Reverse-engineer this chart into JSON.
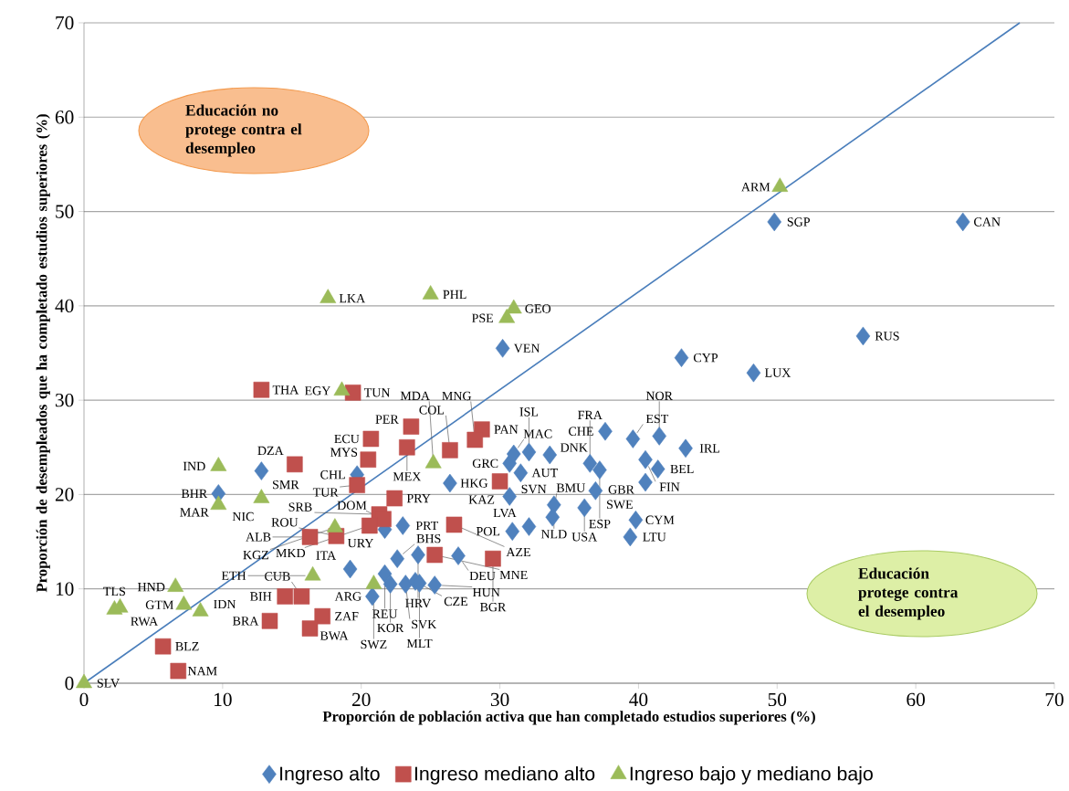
{
  "chart_data": {
    "type": "scatter",
    "xlabel": "Proporción de población activa que han completado estudios superiores (%)",
    "ylabel": "Proporción de desempleados que ha completado estudios superiores (%)",
    "xlim": [
      0,
      70
    ],
    "ylim": [
      0,
      70
    ],
    "xticks": [
      0,
      10,
      20,
      30,
      40,
      50,
      60,
      70
    ],
    "yticks": [
      0,
      10,
      20,
      30,
      40,
      50,
      60,
      70
    ],
    "grid": "y",
    "legend": "bottom",
    "series": [
      {
        "name": "Ingreso alto",
        "color": "#4f81bd",
        "marker": "diamond",
        "x": [
          49.8,
          63.4,
          56.2,
          43.1,
          48.3,
          30.2,
          12.8,
          9.7,
          19.7,
          26.4,
          31.5,
          30.7,
          31.0,
          32.1,
          33.6,
          37.6,
          39.6,
          41.5,
          43.4,
          40.5,
          41.4,
          40.5,
          36.5,
          37.2,
          36.9,
          30.7,
          33.9,
          36.1,
          33.8,
          39.8,
          39.4,
          30.9,
          32.1,
          21.7,
          23.0,
          22.6,
          24.1,
          27.0,
          19.2,
          21.7,
          22.1,
          23.2,
          23.9,
          24.2,
          25.3,
          20.8
        ],
        "values": [
          48.9,
          48.9,
          36.8,
          34.5,
          32.9,
          35.5,
          22.5,
          20.1,
          22.1,
          21.2,
          22.3,
          23.3,
          24.3,
          24.5,
          24.2,
          26.7,
          25.9,
          26.2,
          24.9,
          23.7,
          22.7,
          21.3,
          23.3,
          22.6,
          20.4,
          19.8,
          18.9,
          18.6,
          17.6,
          17.3,
          15.5,
          16.1,
          16.6,
          16.3,
          16.7,
          13.2,
          13.6,
          13.5,
          12.1,
          11.6,
          10.5,
          10.5,
          10.8,
          10.6,
          10.4,
          9.2
        ]
      },
      {
        "name": "Ingreso mediano alto",
        "color": "#c0504d",
        "marker": "square",
        "x": [
          12.8,
          19.4,
          23.6,
          20.7,
          20.5,
          23.3,
          26.4,
          28.7,
          28.2,
          15.2,
          19.7,
          30.0,
          22.4,
          21.3,
          21.6,
          20.6,
          18.2,
          16.3,
          26.7,
          25.3,
          29.5,
          14.5,
          15.7,
          13.4,
          17.2,
          16.3,
          5.7,
          6.8
        ],
        "values": [
          31.1,
          30.8,
          27.2,
          25.9,
          23.7,
          25.0,
          24.7,
          26.9,
          25.8,
          23.2,
          21.0,
          21.4,
          19.6,
          17.9,
          17.4,
          16.7,
          15.6,
          15.5,
          16.8,
          13.6,
          13.2,
          9.2,
          9.2,
          6.6,
          7.1,
          5.8,
          3.9,
          1.3
        ]
      },
      {
        "name": "Ingreso bajo y mediano bajo",
        "color": "#9bbb59",
        "marker": "triangle",
        "x": [
          9.7,
          9.7,
          12.8,
          18.1,
          25.2,
          18.6,
          17.6,
          25.0,
          31.0,
          30.5,
          50.2,
          16.5,
          20.9,
          6.6,
          7.2,
          8.4,
          2.6,
          2.2,
          0
        ],
        "values": [
          23.0,
          18.9,
          19.6,
          16.5,
          23.3,
          31.0,
          40.8,
          41.2,
          39.7,
          38.7,
          52.6,
          11.4,
          10.5,
          10.2,
          8.3,
          7.6,
          8.0,
          7.8,
          0
        ]
      },
      {
        "type": "line",
        "color": "#4a7ebb",
        "x": [
          0,
          67.5
        ],
        "values": [
          0,
          70
        ]
      }
    ],
    "annotations": [
      "Educación no protege contra el desempleo",
      "Educación protege contra el desempleo",
      {
        "text": "SGP",
        "x": 49.8,
        "y": 48.9
      },
      {
        "text": "CAN",
        "x": 63.4,
        "y": 48.9
      },
      {
        "text": "RUS",
        "x": 56.2,
        "y": 36.8
      },
      {
        "text": "CYP",
        "x": 43.1,
        "y": 34.5
      },
      {
        "text": "LUX",
        "x": 48.3,
        "y": 32.9
      },
      {
        "text": "VEN",
        "x": 30.2,
        "y": 35.5
      },
      {
        "text": "SMR",
        "x": 12.8,
        "y": 22.5
      },
      {
        "text": "BHR",
        "x": 9.7,
        "y": 20.1
      },
      {
        "text": "CHL",
        "x": 19.7,
        "y": 22.1
      },
      {
        "text": "HKG",
        "x": 26.4,
        "y": 21.2
      },
      {
        "text": "AUT",
        "x": 31.5,
        "y": 22.3
      },
      {
        "text": "GRC",
        "x": 30.7,
        "y": 23.3
      },
      {
        "text": "MAC",
        "x": 31.0,
        "y": 24.3
      },
      {
        "text": "ISL",
        "x": 32.1,
        "y": 24.5
      },
      {
        "text": "DNK",
        "x": 33.6,
        "y": 24.2
      },
      {
        "text": "CHE",
        "x": 37.6,
        "y": 26.7
      },
      {
        "text": "EST",
        "x": 39.6,
        "y": 25.9
      },
      {
        "text": "NOR",
        "x": 41.5,
        "y": 26.2
      },
      {
        "text": "IRL",
        "x": 43.4,
        "y": 24.9
      },
      {
        "text": "FIN",
        "x": 40.5,
        "y": 23.7
      },
      {
        "text": "BEL",
        "x": 41.4,
        "y": 22.7
      },
      {
        "text": "GBR",
        "x": 40.5,
        "y": 21.3
      },
      {
        "text": "FRA",
        "x": 36.5,
        "y": 23.3
      },
      {
        "text": "ESP",
        "x": 37.2,
        "y": 22.6
      },
      {
        "text": "SWE",
        "x": 36.9,
        "y": 20.4
      },
      {
        "text": "SVN",
        "x": 30.7,
        "y": 19.8
      },
      {
        "text": "NLD",
        "x": 33.9,
        "y": 18.9
      },
      {
        "text": "USA",
        "x": 36.1,
        "y": 18.6
      },
      {
        "text": "BMU",
        "x": 33.8,
        "y": 17.6
      },
      {
        "text": "CYM",
        "x": 39.8,
        "y": 17.3
      },
      {
        "text": "LTU",
        "x": 39.4,
        "y": 15.5
      },
      {
        "text": "POL",
        "x": 30.9,
        "y": 16.1
      },
      {
        "text": "LVA",
        "x": 32.1,
        "y": 16.6
      },
      {
        "text": "URY",
        "x": 21.7,
        "y": 16.3
      },
      {
        "text": "PRT",
        "x": 23.0,
        "y": 16.7
      },
      {
        "text": "BHS",
        "x": 22.6,
        "y": 13.2
      },
      {
        "text": "HRV",
        "x": 24.1,
        "y": 13.6
      },
      {
        "text": "DEU",
        "x": 27.0,
        "y": 13.5
      },
      {
        "text": "ITA",
        "x": 19.2,
        "y": 12.1
      },
      {
        "text": "REU",
        "x": 21.7,
        "y": 11.6
      },
      {
        "text": "KOR",
        "x": 22.1,
        "y": 10.5
      },
      {
        "text": "SVK",
        "x": 23.2,
        "y": 10.5
      },
      {
        "text": "CZE",
        "x": 23.9,
        "y": 10.8
      },
      {
        "text": "MLT",
        "x": 24.2,
        "y": 10.6
      },
      {
        "text": "HUN",
        "x": 25.3,
        "y": 10.4
      },
      {
        "text": "ARG",
        "x": 20.8,
        "y": 9.2
      },
      {
        "text": "THA",
        "x": 12.8,
        "y": 31.1
      },
      {
        "text": "TUN",
        "x": 19.4,
        "y": 30.8
      },
      {
        "text": "PER",
        "x": 23.6,
        "y": 27.2
      },
      {
        "text": "ECU",
        "x": 20.7,
        "y": 25.9
      },
      {
        "text": "MYS",
        "x": 20.5,
        "y": 23.7
      },
      {
        "text": "MEX",
        "x": 23.3,
        "y": 25.0
      },
      {
        "text": "COL",
        "x": 26.4,
        "y": 24.7
      },
      {
        "text": "PAN",
        "x": 28.7,
        "y": 26.9
      },
      {
        "text": "MNG",
        "x": 28.2,
        "y": 25.8
      },
      {
        "text": "DZA",
        "x": 15.2,
        "y": 23.2
      },
      {
        "text": "TUR",
        "x": 19.7,
        "y": 21.0
      },
      {
        "text": "KAZ",
        "x": 30.0,
        "y": 21.4
      },
      {
        "text": "PRY",
        "x": 22.4,
        "y": 19.6
      },
      {
        "text": "SRB",
        "x": 21.3,
        "y": 17.9
      },
      {
        "text": "DOM",
        "x": 21.6,
        "y": 17.4
      },
      {
        "text": "MKD",
        "x": 20.6,
        "y": 16.7
      },
      {
        "text": "ROU",
        "x": 18.2,
        "y": 15.6
      },
      {
        "text": "ALB",
        "x": 16.3,
        "y": 15.5
      },
      {
        "text": "AZE",
        "x": 26.7,
        "y": 16.8
      },
      {
        "text": "MNE",
        "x": 25.3,
        "y": 13.6
      },
      {
        "text": "BGR",
        "x": 29.5,
        "y": 13.2
      },
      {
        "text": "BIH",
        "x": 14.5,
        "y": 9.2
      },
      {
        "text": "CUB",
        "x": 15.7,
        "y": 9.2
      },
      {
        "text": "BRA",
        "x": 13.4,
        "y": 6.6
      },
      {
        "text": "ZAF",
        "x": 17.2,
        "y": 7.1
      },
      {
        "text": "BWA",
        "x": 16.3,
        "y": 5.8
      },
      {
        "text": "BLZ",
        "x": 5.7,
        "y": 3.9
      },
      {
        "text": "NAM",
        "x": 6.8,
        "y": 1.3
      },
      {
        "text": "IND",
        "x": 9.7,
        "y": 23.0
      },
      {
        "text": "MAR",
        "x": 9.7,
        "y": 18.9
      },
      {
        "text": "NIC",
        "x": 12.8,
        "y": 19.6
      },
      {
        "text": "KGZ",
        "x": 18.1,
        "y": 16.5
      },
      {
        "text": "MDA",
        "x": 25.2,
        "y": 23.3
      },
      {
        "text": "EGY",
        "x": 18.6,
        "y": 31.0
      },
      {
        "text": "LKA",
        "x": 17.6,
        "y": 40.8
      },
      {
        "text": "PHL",
        "x": 25.0,
        "y": 41.2
      },
      {
        "text": "GEO",
        "x": 31.0,
        "y": 39.7
      },
      {
        "text": "PSE",
        "x": 30.5,
        "y": 38.7
      },
      {
        "text": "ARM",
        "x": 50.2,
        "y": 52.6
      },
      {
        "text": "ETH",
        "x": 16.5,
        "y": 11.4
      },
      {
        "text": "SWZ",
        "x": 20.9,
        "y": 10.5
      },
      {
        "text": "HND",
        "x": 6.6,
        "y": 10.2
      },
      {
        "text": "GTM",
        "x": 7.2,
        "y": 8.3
      },
      {
        "text": "IDN",
        "x": 8.4,
        "y": 7.6
      },
      {
        "text": "RWA",
        "x": 2.6,
        "y": 8.0
      },
      {
        "text": "TLS",
        "x": 2.2,
        "y": 7.8
      },
      {
        "text": "SLV",
        "x": 0,
        "y": 0
      }
    ]
  }
}
